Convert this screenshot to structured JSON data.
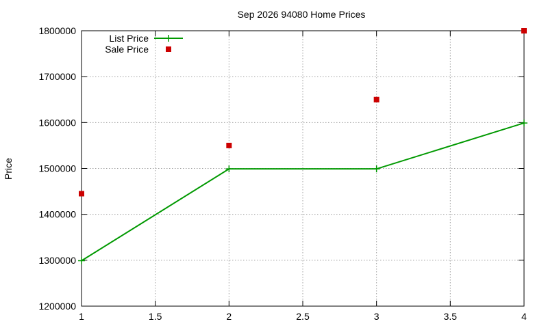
{
  "chart_data": {
    "type": "line",
    "title": "Sep 2026 94080 Home Prices",
    "xlabel": "",
    "ylabel": "Price",
    "xlim": [
      1,
      4
    ],
    "ylim": [
      1200000,
      1800000
    ],
    "xticks": [
      1,
      1.5,
      2,
      2.5,
      3,
      3.5,
      4
    ],
    "xtick_labels": [
      "1",
      "1.5",
      "2",
      "2.5",
      "3",
      "3.5",
      "4"
    ],
    "yticks": [
      1200000,
      1300000,
      1400000,
      1500000,
      1600000,
      1700000,
      1800000
    ],
    "ytick_labels": [
      "1200000",
      "1300000",
      "1400000",
      "1500000",
      "1600000",
      "1700000",
      "1800000"
    ],
    "grid": true,
    "legend_position": "top-left",
    "series": [
      {
        "name": "List Price",
        "style": "lines+points",
        "marker": "plus",
        "color": "#009900",
        "x": [
          1,
          2,
          3,
          4
        ],
        "y": [
          1299000,
          1499000,
          1499000,
          1599000
        ]
      },
      {
        "name": "Sale Price",
        "style": "points",
        "marker": "square",
        "color": "#cc0000",
        "x": [
          1,
          2,
          3,
          4
        ],
        "y": [
          1445000,
          1550000,
          1650000,
          1800000
        ]
      }
    ]
  }
}
